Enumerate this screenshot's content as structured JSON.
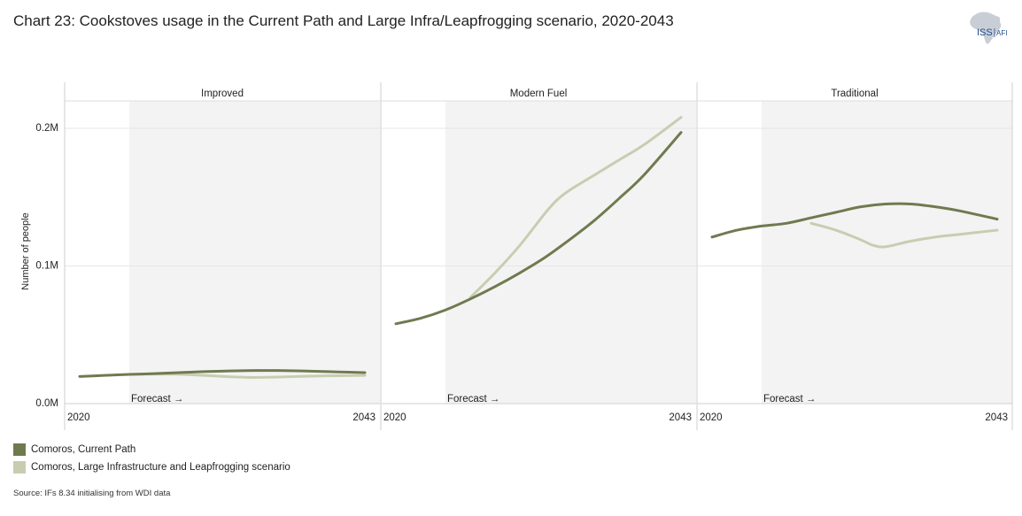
{
  "title": "Chart 23: Cookstoves usage in the Current Path and Large Infra/Leapfrogging scenario, 2020-2043",
  "logo": {
    "text_main": "ISS",
    "text_sub": "AFI",
    "icon": "africa-map-icon"
  },
  "source": "Source: IFs 8.34 initialising from WDI data",
  "colors": {
    "current_path": "#6f7a4f",
    "leapfrog": "#c8cdb1",
    "forecast_bg": "#f3f3f3",
    "grid": "#e6e6e6"
  },
  "chart_data": {
    "type": "line",
    "ylabel": "Number of people",
    "y_ticks": [
      0,
      100000,
      200000
    ],
    "y_tick_labels": [
      "0.0M",
      "0.1M",
      "0.2M"
    ],
    "ylim": [
      0,
      0.22
    ],
    "x_tick_labels": [
      "2020",
      "2043"
    ],
    "forecast_label": "Forecast →",
    "forecast_start": 2024,
    "grid": true,
    "legend_position": "bottom-left",
    "legend": [
      "Comoros, Current Path",
      "Comoros, Large Infrastructure and Leapfrogging scenario"
    ],
    "panels": [
      {
        "name": "Improved",
        "series": [
          {
            "name": "Comoros, Current Path",
            "x": [
              2020,
              2022,
              2024,
              2026,
              2028,
              2030,
              2032,
              2034,
              2036,
              2038,
              2040,
              2043
            ],
            "values": [
              0.0197,
              0.0205,
              0.0212,
              0.0218,
              0.0225,
              0.0232,
              0.0237,
              0.024,
              0.024,
              0.0237,
              0.0232,
              0.0225
            ]
          },
          {
            "name": "Comoros, Large Infrastructure and Leapfrogging scenario",
            "x": [
              2024,
              2026,
              2028,
              2030,
              2032,
              2034,
              2036,
              2038,
              2040,
              2043
            ],
            "values": [
              0.0212,
              0.0215,
              0.0213,
              0.0205,
              0.0195,
              0.019,
              0.0193,
              0.0198,
              0.0202,
              0.0205
            ]
          }
        ]
      },
      {
        "name": "Modern Fuel",
        "series": [
          {
            "name": "Comoros, Current Path",
            "x": [
              2020,
              2022,
              2024,
              2026,
              2028,
              2030,
              2032,
              2034,
              2036,
              2038,
              2040,
              2043
            ],
            "values": [
              0.058,
              0.062,
              0.068,
              0.076,
              0.085,
              0.095,
              0.106,
              0.119,
              0.133,
              0.149,
              0.166,
              0.197
            ]
          },
          {
            "name": "Comoros, Large Infrastructure and Leapfrogging scenario",
            "x": [
              2026,
              2028,
              2030,
              2032,
              2033,
              2034,
              2036,
              2038,
              2040,
              2043
            ],
            "values": [
              0.077,
              0.095,
              0.115,
              0.138,
              0.148,
              0.155,
              0.166,
              0.177,
              0.188,
              0.208
            ]
          }
        ]
      },
      {
        "name": "Traditional",
        "series": [
          {
            "name": "Comoros, Current Path",
            "x": [
              2020,
              2022,
              2024,
              2026,
              2028,
              2030,
              2032,
              2034,
              2036,
              2038,
              2040,
              2043
            ],
            "values": [
              0.121,
              0.126,
              0.129,
              0.131,
              0.135,
              0.139,
              0.143,
              0.145,
              0.145,
              0.143,
              0.14,
              0.134
            ]
          },
          {
            "name": "Comoros, Large Infrastructure and Leapfrogging scenario",
            "x": [
              2028,
              2030,
              2032,
              2033,
              2034,
              2036,
              2038,
              2040,
              2043
            ],
            "values": [
              0.131,
              0.126,
              0.119,
              0.115,
              0.114,
              0.118,
              0.121,
              0.123,
              0.126
            ]
          }
        ]
      }
    ]
  }
}
